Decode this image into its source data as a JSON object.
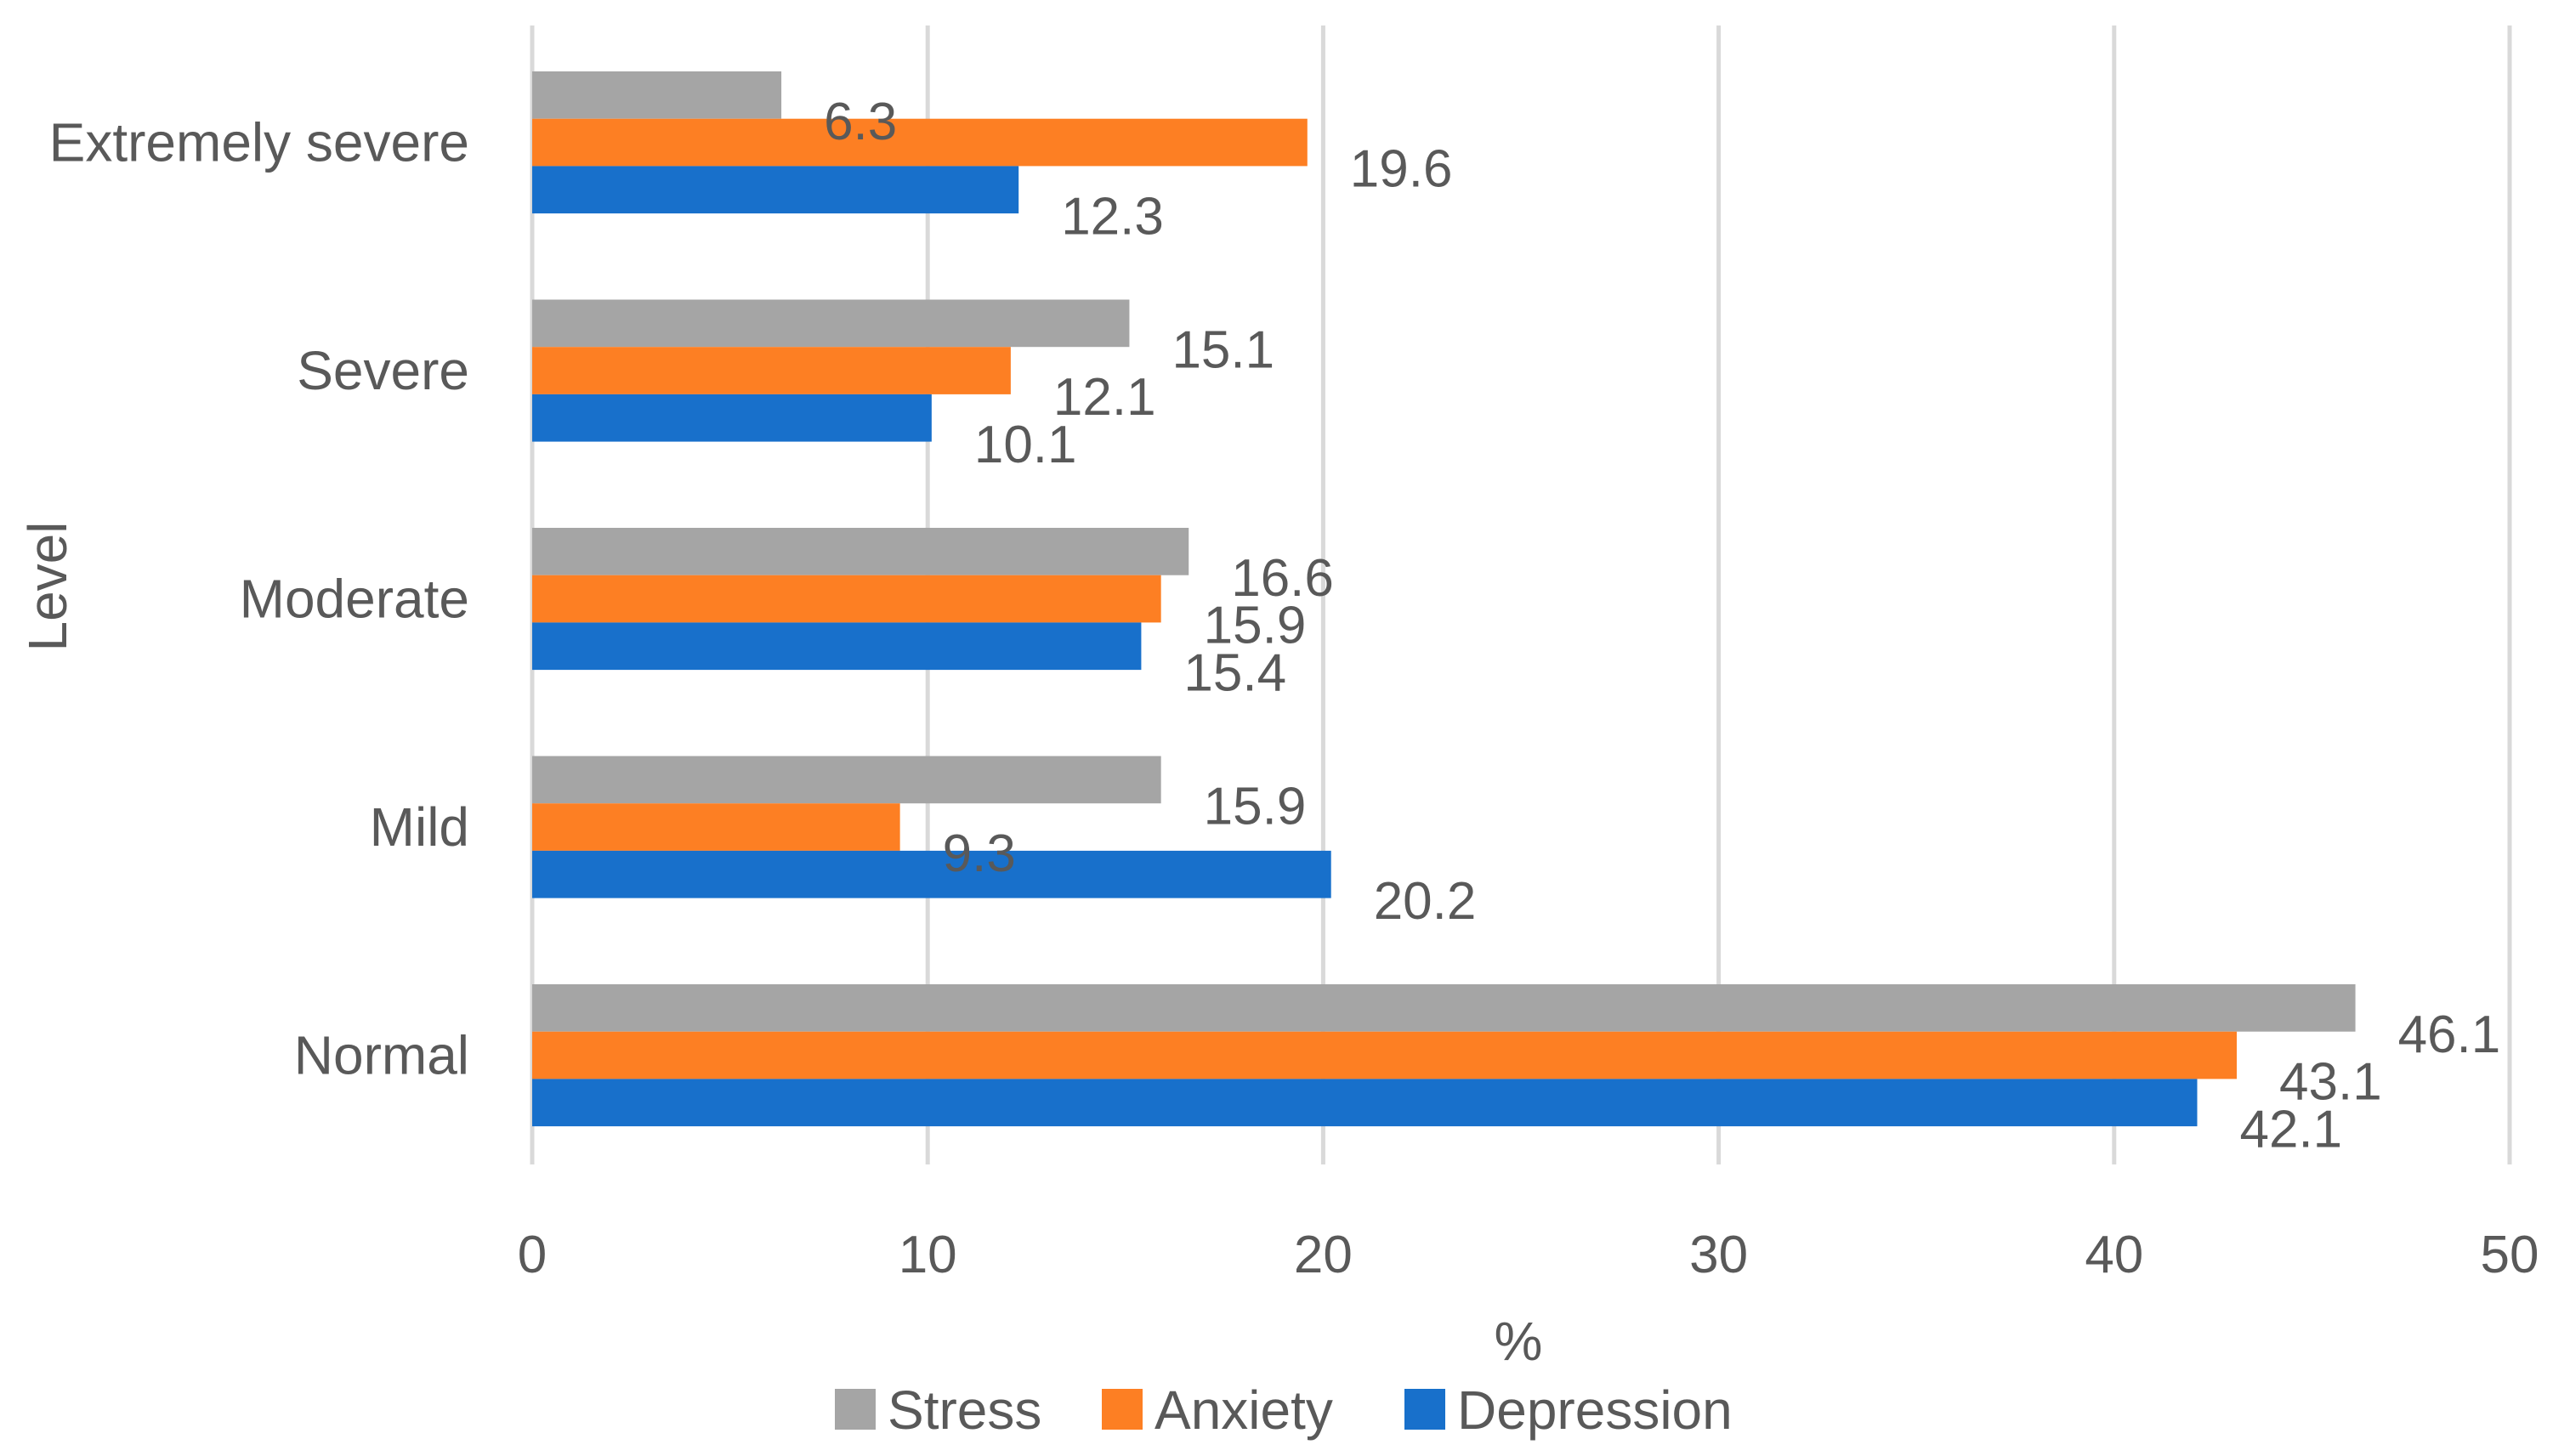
{
  "chart_data": {
    "type": "bar",
    "orientation": "horizontal",
    "title": "",
    "xlabel": "%",
    "ylabel": "Level",
    "xlim": [
      0,
      50
    ],
    "xticks": [
      0,
      10,
      20,
      30,
      40,
      50
    ],
    "grid": true,
    "legend_position": "bottom",
    "categories": [
      "Extremely severe",
      "Severe",
      "Moderate",
      "Mild",
      "Normal"
    ],
    "series": [
      {
        "name": "Stress",
        "color": "#a5a5a5",
        "values": [
          6.3,
          15.1,
          16.6,
          15.9,
          46.1
        ]
      },
      {
        "name": "Anxiety",
        "color": "#fd7f23",
        "values": [
          19.6,
          12.1,
          15.9,
          9.3,
          43.1
        ]
      },
      {
        "name": "Depression",
        "color": "#1870cb",
        "values": [
          12.3,
          10.1,
          15.4,
          20.2,
          42.1
        ]
      }
    ]
  }
}
